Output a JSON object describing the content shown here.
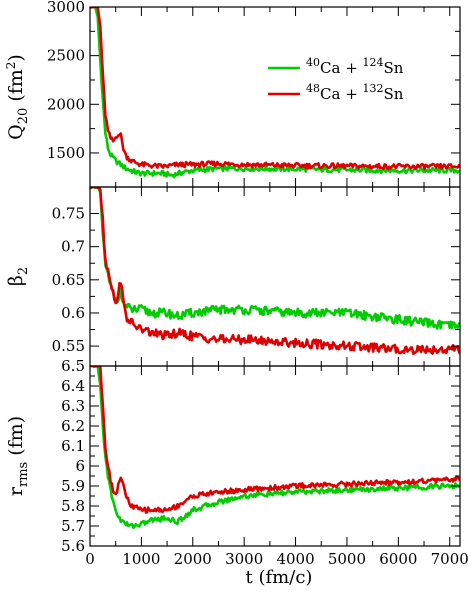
{
  "chart_data": {
    "type": "line",
    "shared_x": {
      "label": "t (fm/c)",
      "range": [
        0,
        7200
      ],
      "ticks": [
        0,
        1000,
        2000,
        3000,
        4000,
        5000,
        6000,
        7000
      ],
      "tick_labels": [
        "0",
        "1000",
        "2000",
        "3000",
        "4000",
        "5000",
        "6000",
        "7000"
      ]
    },
    "legend": {
      "placement": "top-right",
      "entries": [
        {
          "label_main": "40",
          "label_text": "Ca + ",
          "label_sup2": "124",
          "label_text2": "Sn",
          "color": "#00cc00"
        },
        {
          "label_main": "48",
          "label_text": "Ca + ",
          "label_sup2": "132",
          "label_text2": "Sn",
          "color": "#dd0000"
        }
      ]
    },
    "panels": [
      {
        "ylabel_main": "Q",
        "ylabel_sub": "20",
        "ylabel_unit": " (fm",
        "ylabel_unit_sup": "2",
        "ylabel_close": ")",
        "ylim": [
          1150,
          3000
        ],
        "yticks": [
          1500,
          2000,
          2500,
          3000
        ],
        "ytick_labels": [
          "1500",
          "2000",
          "2500",
          "3000"
        ],
        "series": [
          {
            "color": "#00cc00",
            "x": [
              0,
              100,
              150,
              200,
              250,
              300,
              350,
              400,
              450,
              500,
              550,
              600,
              650,
              700,
              800,
              900,
              1000,
              1200,
              1400,
              1600,
              1700,
              1800,
              2000,
              2500,
              3000,
              4000,
              5000,
              6000,
              7000,
              7200
            ],
            "y": [
              3000,
              3000,
              2900,
              2450,
              2050,
              1700,
              1550,
              1480,
              1450,
              1420,
              1400,
              1380,
              1360,
              1340,
              1320,
              1300,
              1290,
              1290,
              1290,
              1270,
              1285,
              1300,
              1320,
              1340,
              1340,
              1335,
              1325,
              1320,
              1320,
              1320
            ]
          },
          {
            "color": "#dd0000",
            "x": [
              0,
              100,
              150,
              200,
              250,
              300,
              350,
              400,
              450,
              500,
              550,
              600,
              650,
              700,
              800,
              900,
              1000,
              1200,
              1400,
              1600,
              1700,
              1800,
              2000,
              2500,
              3000,
              4000,
              5000,
              6000,
              7000,
              7200
            ],
            "y": [
              3000,
              3000,
              3000,
              2800,
              2300,
              1900,
              1720,
              1650,
              1620,
              1660,
              1700,
              1680,
              1550,
              1470,
              1420,
              1400,
              1380,
              1370,
              1360,
              1370,
              1380,
              1380,
              1380,
              1390,
              1380,
              1370,
              1365,
              1360,
              1360,
              1360
            ]
          }
        ]
      },
      {
        "ylabel_main": "β",
        "ylabel_sub": "2",
        "ylim": [
          0.52,
          0.79
        ],
        "yticks": [
          0.55,
          0.6,
          0.65,
          0.7,
          0.75
        ],
        "ytick_labels": [
          "0.55",
          "0.6",
          "0.65",
          "0.7",
          "0.75"
        ],
        "series": [
          {
            "color": "#00cc00",
            "x": [
              0,
              150,
              200,
              250,
              300,
              350,
              400,
              450,
              500,
              550,
              600,
              650,
              700,
              800,
              1000,
              1200,
              1500,
              1700,
              2000,
              2500,
              3000,
              4000,
              5000,
              6000,
              7000,
              7200
            ],
            "y": [
              0.79,
              0.79,
              0.78,
              0.72,
              0.67,
              0.655,
              0.64,
              0.63,
              0.62,
              0.625,
              0.63,
              0.615,
              0.61,
              0.605,
              0.605,
              0.6,
              0.6,
              0.595,
              0.6,
              0.605,
              0.605,
              0.6,
              0.6,
              0.59,
              0.58,
              0.58
            ]
          },
          {
            "color": "#dd0000",
            "x": [
              0,
              150,
              200,
              250,
              300,
              350,
              400,
              450,
              500,
              550,
              600,
              650,
              700,
              800,
              1000,
              1200,
              1500,
              1700,
              2000,
              2500,
              3000,
              4000,
              5000,
              6000,
              7000,
              7200
            ],
            "y": [
              0.79,
              0.79,
              0.79,
              0.74,
              0.68,
              0.665,
              0.65,
              0.63,
              0.61,
              0.635,
              0.65,
              0.615,
              0.595,
              0.585,
              0.575,
              0.57,
              0.565,
              0.57,
              0.565,
              0.56,
              0.56,
              0.555,
              0.55,
              0.545,
              0.545,
              0.545
            ]
          }
        ]
      },
      {
        "ylabel_main": "r",
        "ylabel_sub": "rms",
        "ylabel_unit": " (fm)",
        "ylim": [
          5.6,
          6.5
        ],
        "yticks": [
          5.6,
          5.7,
          5.8,
          5.9,
          6.0,
          6.1,
          6.2,
          6.3,
          6.4,
          6.5
        ],
        "ytick_labels": [
          "5.6",
          "5.7",
          "5.8",
          "5.9",
          "6",
          "6.1",
          "6.2",
          "6.3",
          "6.4",
          "6.5"
        ],
        "series": [
          {
            "color": "#00cc00",
            "x": [
              0,
              150,
              200,
              250,
              300,
              350,
              400,
              450,
              500,
              550,
              600,
              650,
              700,
              800,
              1000,
              1200,
              1500,
              1700,
              2000,
              2500,
              3000,
              4000,
              5000,
              6000,
              7000,
              7200
            ],
            "y": [
              6.5,
              6.5,
              6.4,
              6.2,
              6.05,
              5.95,
              5.88,
              5.82,
              5.78,
              5.75,
              5.73,
              5.72,
              5.71,
              5.7,
              5.71,
              5.73,
              5.74,
              5.72,
              5.78,
              5.82,
              5.85,
              5.87,
              5.88,
              5.89,
              5.9,
              5.9
            ]
          },
          {
            "color": "#dd0000",
            "x": [
              0,
              150,
              200,
              250,
              300,
              350,
              400,
              450,
              500,
              550,
              600,
              650,
              700,
              800,
              1000,
              1200,
              1500,
              1700,
              2000,
              2500,
              3000,
              4000,
              5000,
              6000,
              7000,
              7200
            ],
            "y": [
              6.5,
              6.5,
              6.5,
              6.3,
              6.1,
              6.0,
              5.93,
              5.88,
              5.86,
              5.9,
              5.95,
              5.9,
              5.85,
              5.8,
              5.78,
              5.78,
              5.78,
              5.8,
              5.85,
              5.87,
              5.88,
              5.9,
              5.91,
              5.92,
              5.93,
              5.94
            ]
          }
        ]
      }
    ]
  }
}
